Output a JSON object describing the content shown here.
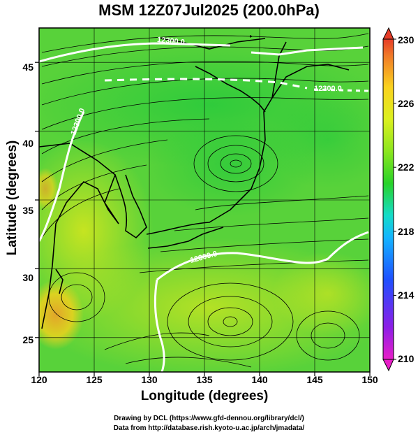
{
  "title": "MSM 12Z07Jul2025 (200.0hPa)",
  "axes": {
    "xlabel": "Longitude (degrees)",
    "ylabel": "Latitude  (degrees)",
    "xticks": [
      "120",
      "125",
      "130",
      "135",
      "140",
      "145",
      "150"
    ],
    "yticks": [
      "45",
      "40",
      "35",
      "30",
      "25"
    ]
  },
  "colorbar": {
    "ticks": [
      "230",
      "226",
      "222",
      "218",
      "214",
      "210"
    ],
    "range": [
      210,
      230
    ]
  },
  "contour_labels": [
    "12300.0",
    "12300.0",
    "12300.0",
    "12300.0"
  ],
  "credits": {
    "line1": "Drawing by DCL (https://www.gfd-dennou.org/library/dcl/)",
    "line2": "Data from http://database.rish.kyoto-u.ac.jp/arch/jmadata/"
  },
  "chart_data": {
    "type": "heatmap",
    "title": "MSM 12Z07Jul2025 (200.0hPa)",
    "xlabel": "Longitude (degrees)",
    "ylabel": "Latitude  (degrees)",
    "xlim": [
      120,
      150
    ],
    "ylim": [
      22.5,
      47.5
    ],
    "colorbar_range": [
      210,
      230
    ],
    "colorbar_ticks": [
      210,
      214,
      218,
      222,
      226,
      230
    ]
  }
}
